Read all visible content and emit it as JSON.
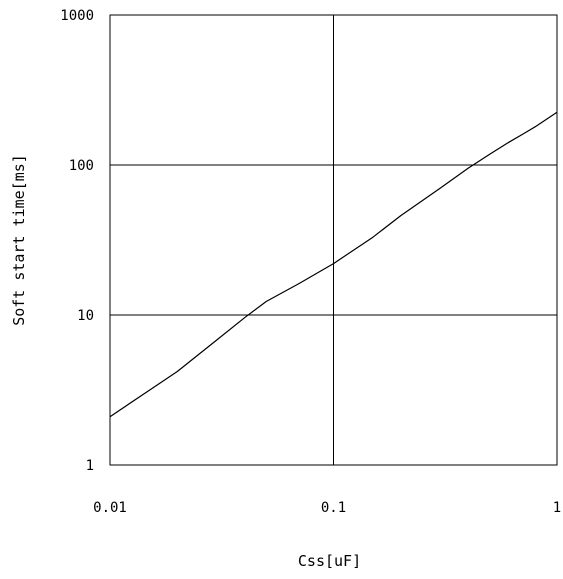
{
  "chart_data": {
    "type": "line",
    "title": "",
    "xlabel": "Css[uF]",
    "ylabel": "Soft start time[ms]",
    "x_scale": "log",
    "y_scale": "log",
    "xlim": [
      0.01,
      1
    ],
    "ylim": [
      1,
      1000
    ],
    "x_ticks": [
      0.01,
      0.1,
      1
    ],
    "x_tick_labels": [
      "0.01",
      "0.1",
      "1"
    ],
    "y_ticks": [
      1,
      10,
      100,
      1000
    ],
    "y_tick_labels": [
      "1",
      "10",
      "100",
      "1000"
    ],
    "grid": true,
    "legend": "none",
    "series": [
      {
        "x": [
          0.01,
          0.02,
          0.03,
          0.04,
          0.05,
          0.07,
          0.1,
          0.15,
          0.2,
          0.3,
          0.4,
          0.5,
          0.6,
          0.7,
          0.8,
          1.0
        ],
        "y": [
          2.1,
          4.2,
          6.8,
          9.6,
          12.3,
          16.2,
          22,
          33,
          46,
          70,
          95,
          118,
          140,
          160,
          180,
          225
        ]
      }
    ],
    "colors": {
      "line": "#000000",
      "grid": "#000000",
      "background": "#ffffff"
    }
  }
}
